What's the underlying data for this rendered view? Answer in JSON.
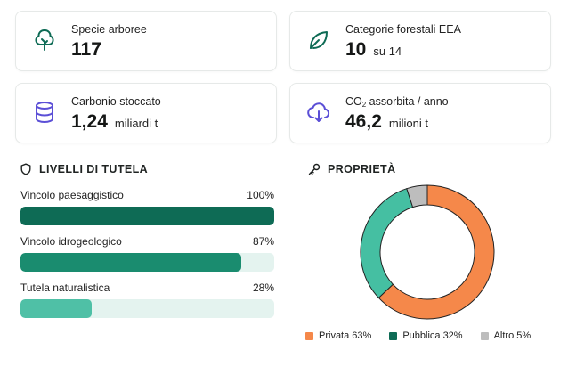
{
  "stats": {
    "species": {
      "label": "Specie arboree",
      "value": "117",
      "unit": ""
    },
    "categories": {
      "label": "Categorie forestali EEA",
      "value": "10",
      "unit": "su 14"
    },
    "carbon": {
      "label": "Carbonio stoccato",
      "value": "1,24",
      "unit": "miliardi t"
    },
    "co2": {
      "label_prefix": "CO",
      "label_sub": "2",
      "label_suffix": " assorbita / anno",
      "value": "46,2",
      "unit": "milioni t"
    }
  },
  "protection": {
    "title": "LIVELLI DI TUTELA",
    "items": [
      {
        "label": "Vincolo paesaggistico",
        "percent_label": "100%",
        "percent": 100,
        "color": "#0e6b55"
      },
      {
        "label": "Vincolo idrogeologico",
        "percent_label": "87%",
        "percent": 87,
        "color": "#1a8c6f"
      },
      {
        "label": "Tutela naturalistica",
        "percent_label": "28%",
        "percent": 28,
        "color": "#4fc0a6"
      }
    ]
  },
  "ownership": {
    "title": "PROPRIETÀ",
    "legend": [
      {
        "label": "Privata 63%",
        "color": "#f5884a"
      },
      {
        "label": "Pubblica 32%",
        "color": "#0e6b55"
      },
      {
        "label": "Altro 5%",
        "color": "#bdbdbd"
      }
    ]
  },
  "chart_data": {
    "type": "pie",
    "categories": [
      "Privata",
      "Pubblica",
      "Altro"
    ],
    "values": [
      63,
      32,
      5
    ],
    "colors": [
      "#f5884a",
      "#45bfa2",
      "#bdbdbd"
    ],
    "title": "PROPRIETÀ"
  }
}
